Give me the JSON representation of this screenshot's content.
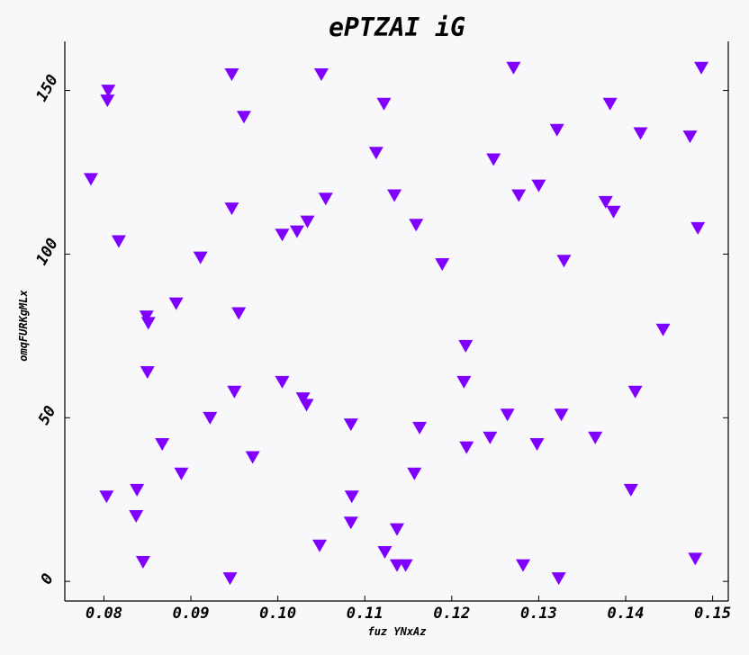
{
  "chart_data": {
    "type": "scatter",
    "title": "ePTZAI iG",
    "xlabel": "fuz YNxAz",
    "ylabel": "omqFURKgMLx",
    "xlim": [
      0.0755,
      0.1518
    ],
    "ylim": [
      -6,
      165
    ],
    "xticks": [
      0.08,
      0.09,
      0.1,
      0.11,
      0.12,
      0.13,
      0.14,
      0.15
    ],
    "xtick_labels": [
      "0.08",
      "0.09",
      "0.10",
      "0.11",
      "0.12",
      "0.13",
      "0.14",
      "0.15"
    ],
    "yticks": [
      0,
      50,
      100,
      150
    ],
    "ytick_labels": [
      "0",
      "50",
      "100",
      "150"
    ],
    "grid": false,
    "marker": "triangle-down",
    "color": "#7f00ff",
    "series": [
      {
        "points": [
          [
            0.0785,
            123
          ],
          [
            0.0805,
            150
          ],
          [
            0.0804,
            147
          ],
          [
            0.0817,
            104
          ],
          [
            0.0803,
            26
          ],
          [
            0.0838,
            28
          ],
          [
            0.0837,
            20
          ],
          [
            0.0845,
            6
          ],
          [
            0.0849,
            81
          ],
          [
            0.0851,
            79
          ],
          [
            0.085,
            64
          ],
          [
            0.0867,
            42
          ],
          [
            0.0883,
            85
          ],
          [
            0.0889,
            33
          ],
          [
            0.0911,
            99
          ],
          [
            0.0922,
            50
          ],
          [
            0.0947,
            155
          ],
          [
            0.0947,
            114
          ],
          [
            0.095,
            58
          ],
          [
            0.0955,
            82
          ],
          [
            0.0961,
            142
          ],
          [
            0.0945,
            1
          ],
          [
            0.0971,
            38
          ],
          [
            0.1005,
            106
          ],
          [
            0.1005,
            61
          ],
          [
            0.1022,
            107
          ],
          [
            0.1029,
            56
          ],
          [
            0.1034,
            110
          ],
          [
            0.1033,
            54
          ],
          [
            0.105,
            155
          ],
          [
            0.1055,
            117
          ],
          [
            0.1048,
            11
          ],
          [
            0.1084,
            48
          ],
          [
            0.1085,
            26
          ],
          [
            0.1084,
            18
          ],
          [
            0.1113,
            131
          ],
          [
            0.1122,
            146
          ],
          [
            0.1123,
            9
          ],
          [
            0.1134,
            118
          ],
          [
            0.1137,
            16
          ],
          [
            0.1137,
            5
          ],
          [
            0.1147,
            5
          ],
          [
            0.1159,
            109
          ],
          [
            0.1157,
            33
          ],
          [
            0.1163,
            47
          ],
          [
            0.1189,
            97
          ],
          [
            0.1214,
            61
          ],
          [
            0.1216,
            72
          ],
          [
            0.1217,
            41
          ],
          [
            0.1244,
            44
          ],
          [
            0.1248,
            129
          ],
          [
            0.1264,
            51
          ],
          [
            0.1271,
            157
          ],
          [
            0.1277,
            118
          ],
          [
            0.1282,
            5
          ],
          [
            0.1298,
            42
          ],
          [
            0.13,
            121
          ],
          [
            0.1321,
            138
          ],
          [
            0.1323,
            1
          ],
          [
            0.1326,
            51
          ],
          [
            0.1329,
            98
          ],
          [
            0.1365,
            44
          ],
          [
            0.1377,
            116
          ],
          [
            0.1382,
            146
          ],
          [
            0.1386,
            113
          ],
          [
            0.1406,
            28
          ],
          [
            0.1411,
            58
          ],
          [
            0.1417,
            137
          ],
          [
            0.1443,
            77
          ],
          [
            0.1474,
            136
          ],
          [
            0.148,
            7
          ],
          [
            0.1483,
            108
          ],
          [
            0.1487,
            157
          ]
        ]
      }
    ]
  }
}
